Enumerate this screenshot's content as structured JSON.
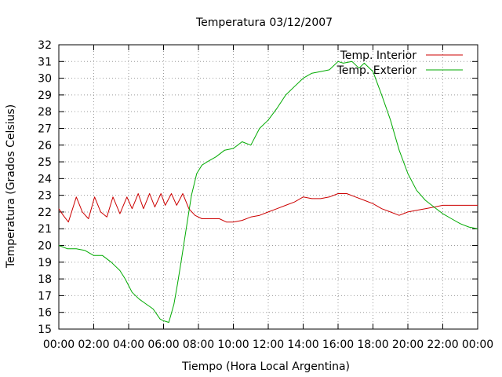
{
  "chart_data": {
    "type": "line",
    "title": "Temperatura 03/12/2007",
    "xlabel": "Tiempo (Hora Local Argentina)",
    "ylabel": "Temperatura (Grados Celsius)",
    "xlim": [
      0,
      24
    ],
    "ylim": [
      15,
      32
    ],
    "grid": true,
    "legend_position": "top-right",
    "x_ticks": [
      {
        "value": 0,
        "label": "00:00"
      },
      {
        "value": 2,
        "label": "02:00"
      },
      {
        "value": 4,
        "label": "04:00"
      },
      {
        "value": 6,
        "label": "06:00"
      },
      {
        "value": 8,
        "label": "08:00"
      },
      {
        "value": 10,
        "label": "10:00"
      },
      {
        "value": 12,
        "label": "12:00"
      },
      {
        "value": 14,
        "label": "14:00"
      },
      {
        "value": 16,
        "label": "16:00"
      },
      {
        "value": 18,
        "label": "18:00"
      },
      {
        "value": 20,
        "label": "20:00"
      },
      {
        "value": 22,
        "label": "22:00"
      },
      {
        "value": 24,
        "label": "00:00"
      }
    ],
    "y_ticks": [
      15,
      16,
      17,
      18,
      19,
      20,
      21,
      22,
      23,
      24,
      25,
      26,
      27,
      28,
      29,
      30,
      31,
      32
    ],
    "series": [
      {
        "name": "Temp. Interior",
        "color": "#cc0000",
        "x": [
          0,
          0.25,
          0.55,
          1.0,
          1.35,
          1.7,
          2.05,
          2.4,
          2.75,
          3.1,
          3.5,
          3.9,
          4.2,
          4.55,
          4.85,
          5.2,
          5.5,
          5.85,
          6.1,
          6.45,
          6.75,
          7.1,
          7.45,
          7.8,
          8.2,
          8.7,
          9.2,
          9.6,
          10.0,
          10.5,
          11.0,
          11.5,
          12.0,
          12.5,
          13.0,
          13.5,
          14.0,
          14.5,
          15.0,
          15.5,
          16.0,
          16.5,
          17.0,
          17.5,
          18.0,
          18.5,
          19.0,
          19.5,
          20.0,
          20.5,
          21.0,
          21.5,
          22.0,
          22.5,
          23.0,
          24.0
        ],
        "y": [
          22.2,
          21.8,
          21.4,
          22.9,
          22.0,
          21.6,
          22.9,
          22.0,
          21.7,
          22.9,
          21.9,
          22.9,
          22.2,
          23.1,
          22.2,
          23.1,
          22.3,
          23.1,
          22.4,
          23.1,
          22.4,
          23.1,
          22.2,
          21.8,
          21.6,
          21.6,
          21.6,
          21.4,
          21.4,
          21.5,
          21.7,
          21.8,
          22.0,
          22.2,
          22.4,
          22.6,
          22.9,
          22.8,
          22.8,
          22.9,
          23.1,
          23.1,
          22.9,
          22.7,
          22.5,
          22.2,
          22.0,
          21.8,
          22.0,
          22.1,
          22.2,
          22.3,
          22.4,
          22.4,
          22.4,
          22.4
        ]
      },
      {
        "name": "Temp. Exterior",
        "color": "#00aa00",
        "x": [
          0,
          0.5,
          1.0,
          1.5,
          2.0,
          2.5,
          3.0,
          3.5,
          3.8,
          4.2,
          4.6,
          5.0,
          5.4,
          5.8,
          6.0,
          6.3,
          6.6,
          6.8,
          7.0,
          7.3,
          7.6,
          7.9,
          8.2,
          8.5,
          9.0,
          9.5,
          10.0,
          10.5,
          11.0,
          11.5,
          12.0,
          12.5,
          13.0,
          13.5,
          14.0,
          14.5,
          15.0,
          15.5,
          16.0,
          16.3,
          16.8,
          17.2,
          17.5,
          18.0,
          18.5,
          19.0,
          19.5,
          20.0,
          20.5,
          21.0,
          21.5,
          22.0,
          22.5,
          23.0,
          23.5,
          24.0
        ],
        "y": [
          20.0,
          19.8,
          19.8,
          19.7,
          19.4,
          19.4,
          19.0,
          18.5,
          18.0,
          17.2,
          16.8,
          16.5,
          16.2,
          15.6,
          15.5,
          15.4,
          16.5,
          17.7,
          19.0,
          21.0,
          23.0,
          24.3,
          24.8,
          25.0,
          25.3,
          25.7,
          25.8,
          26.2,
          26.0,
          27.0,
          27.5,
          28.2,
          29.0,
          29.5,
          30.0,
          30.3,
          30.4,
          30.5,
          31.0,
          30.9,
          31.0,
          30.6,
          30.9,
          30.4,
          29.0,
          27.5,
          25.7,
          24.3,
          23.3,
          22.7,
          22.3,
          21.9,
          21.6,
          21.3,
          21.1,
          21.0
        ]
      }
    ]
  }
}
